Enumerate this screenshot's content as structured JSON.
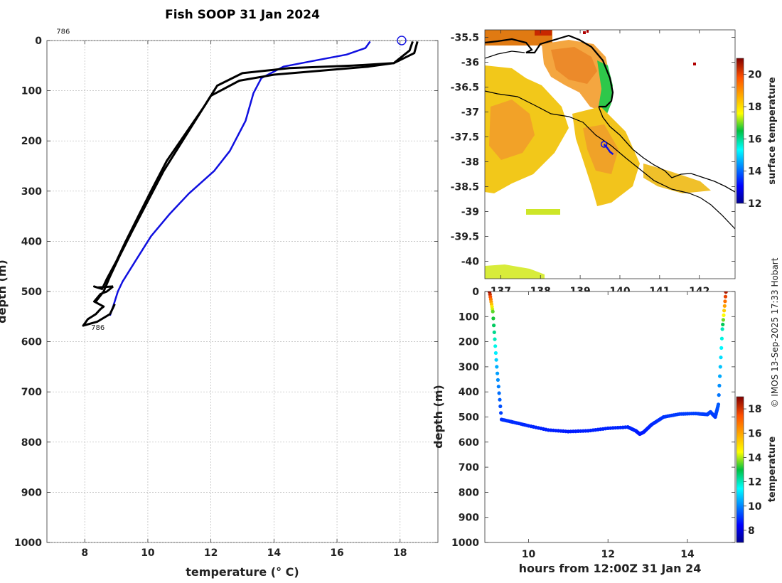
{
  "title": "Fish SOOP 31 Jan 2024",
  "credit": "© IMOS 13-Sep-2025 17:33 Hobart",
  "chart_data": [
    {
      "name": "profile",
      "type": "line",
      "xlabel": "temperature (° C)",
      "ylabel": "depth (m)",
      "xlim": [
        6.8,
        19.2
      ],
      "ylim": [
        0,
        1000
      ],
      "y_reversed": true,
      "xticks": [
        8,
        10,
        12,
        14,
        16,
        18
      ],
      "yticks": [
        0,
        100,
        200,
        300,
        400,
        500,
        600,
        700,
        800,
        900,
        1000
      ],
      "annotations": [
        {
          "text": "786",
          "x": 7.1,
          "y": -18
        },
        {
          "text": "786",
          "x": 8.2,
          "y": 572
        }
      ],
      "marker": {
        "shape": "circle",
        "x": 18.05,
        "y": 0
      },
      "series": [
        {
          "name": "blue profile",
          "color": "#1010e0",
          "width": 2.5,
          "x": [
            17.05,
            16.9,
            16.3,
            15.3,
            14.3,
            13.6,
            13.35,
            13.1,
            12.6,
            12.1,
            11.3,
            10.7,
            10.1,
            9.6,
            9.2,
            9.05,
            8.9,
            8.8
          ],
          "y": [
            2,
            15,
            28,
            40,
            52,
            75,
            105,
            160,
            220,
            260,
            305,
            345,
            390,
            440,
            480,
            500,
            530,
            548
          ]
        },
        {
          "name": "black profile 1",
          "color": "#000000",
          "width": 3,
          "x": [
            18.4,
            18.3,
            17.8,
            17.0,
            15.5,
            14.0,
            12.9,
            12.0,
            11.5,
            11.1,
            10.5,
            10.0,
            9.5,
            9.1,
            8.8,
            8.6,
            8.35
          ],
          "y": [
            2,
            20,
            45,
            52,
            60,
            68,
            80,
            110,
            160,
            200,
            260,
            320,
            380,
            430,
            470,
            500,
            520
          ]
        },
        {
          "name": "black profile 2",
          "color": "#000000",
          "width": 3,
          "x": [
            18.55,
            18.45,
            17.8,
            16.5,
            14.5,
            13.0,
            12.2,
            11.8,
            11.2,
            10.6,
            10.1,
            9.7,
            9.3,
            9.0,
            8.7,
            8.55,
            8.3,
            8.4,
            8.9
          ],
          "y": [
            2,
            25,
            45,
            50,
            55,
            65,
            90,
            130,
            185,
            240,
            300,
            350,
            400,
            440,
            475,
            495,
            490,
            492,
            490
          ]
        },
        {
          "name": "black profile 3",
          "color": "#000000",
          "width": 3,
          "x": [
            8.9,
            8.7,
            8.5,
            8.3,
            8.6,
            8.5,
            8.35,
            8.1,
            7.95,
            8.4,
            8.8,
            8.95
          ],
          "y": [
            490,
            500,
            505,
            520,
            530,
            535,
            545,
            555,
            568,
            560,
            545,
            525
          ]
        }
      ]
    },
    {
      "name": "map",
      "type": "heatmap",
      "xlim": [
        136.6,
        142.9
      ],
      "ylim": [
        -40.35,
        -35.35
      ],
      "xticks": [
        137,
        138,
        139,
        140,
        141,
        142
      ],
      "yticks": [
        -35.5,
        -36,
        -36.5,
        -37,
        -37.5,
        -38,
        -38.5,
        -39,
        -39.5,
        -40
      ],
      "ytick_labels": [
        "-35.5",
        "-36",
        "-36.5",
        "-37",
        "-37.5",
        "-38",
        "-38.5",
        "-39",
        "-39.5",
        "-40"
      ],
      "colorbar": {
        "label": "surface temperature",
        "range": [
          12,
          21
        ],
        "ticks": [
          12,
          14,
          16,
          18,
          20
        ]
      },
      "track": {
        "lon": [
          139.6,
          139.68,
          139.75,
          139.83
        ],
        "lat": [
          -37.65,
          -37.72,
          -37.8,
          -37.85
        ]
      }
    },
    {
      "name": "section",
      "type": "scatter",
      "xlabel": "hours from 12:00Z 31 Jan 24",
      "ylabel": "depth (m)",
      "xlim": [
        8.9,
        15.2
      ],
      "ylim": [
        0,
        1000
      ],
      "y_reversed": true,
      "xticks": [
        10,
        12,
        14
      ],
      "yticks": [
        0,
        100,
        200,
        300,
        400,
        500,
        600,
        700,
        800,
        900,
        1000
      ],
      "colorbar": {
        "label": "temperature",
        "range": [
          7,
          19
        ],
        "ticks": [
          8,
          10,
          12,
          14,
          16,
          18
        ]
      },
      "path": {
        "t": [
          9.02,
          9.1,
          9.2,
          9.32,
          9.6,
          10.0,
          10.5,
          11.0,
          11.5,
          12.0,
          12.5,
          12.7,
          12.8,
          12.9,
          13.1,
          13.4,
          13.8,
          14.2,
          14.5,
          14.58,
          14.7,
          14.78,
          14.88,
          14.97
        ],
        "depth": [
          2,
          80,
          300,
          510,
          520,
          535,
          552,
          558,
          555,
          545,
          540,
          555,
          568,
          560,
          530,
          500,
          488,
          486,
          490,
          480,
          500,
          450,
          150,
          2
        ],
        "temperature": [
          18.8,
          13.5,
          10.5,
          9.0,
          8.95,
          8.9,
          8.8,
          8.75,
          8.8,
          8.85,
          8.9,
          8.8,
          8.7,
          8.75,
          8.9,
          9.05,
          9.15,
          9.2,
          9.15,
          9.25,
          9.1,
          9.5,
          12.0,
          18.5
        ]
      }
    }
  ]
}
